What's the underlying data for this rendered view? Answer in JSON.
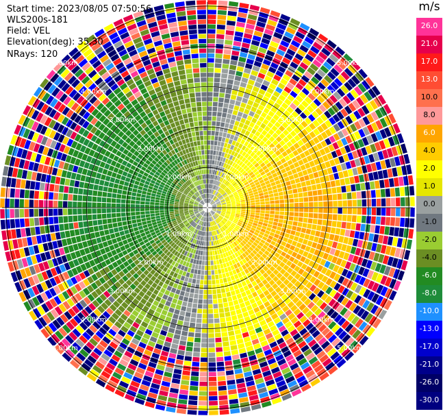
{
  "header": {
    "start_time": "Start time: 2023/08/05 07:50:56",
    "instrument": "WLS200s-181",
    "field": "Field: VEL",
    "elevation": "Elevation(deg): 35.30",
    "nrays": "NRays: 120"
  },
  "colorbar": {
    "title": "m/s",
    "ticks": [
      "26.0",
      "21.0",
      "17.0",
      "13.0",
      "10.0",
      "8.0",
      "6.0",
      "4.0",
      "2.0",
      "1.0",
      "0.0",
      "-1.0",
      "-2.0",
      "-4.0",
      "-6.0",
      "-8.0",
      "-10.0",
      "-13.0",
      "-17.0",
      "-21.0",
      "-26.0",
      "-30.0"
    ],
    "colors": [
      "#ff3399",
      "#e6004c",
      "#ff1a1a",
      "#ff4d33",
      "#ff704d",
      "#ff9999",
      "#ffa500",
      "#ffcc00",
      "#ffff00",
      "#e6e600",
      "#9aa0a0",
      "#707880",
      "#9acd32",
      "#6b8e23",
      "#228b22",
      "#1e8c3a",
      "#1e90ff",
      "#0000ff",
      "#0000cd",
      "#00008b",
      "#000066",
      "#000080"
    ]
  },
  "chart_data": {
    "type": "ppi",
    "field": "VEL",
    "units": "m/s",
    "nrays": 120,
    "range_ring_labels": [
      "1.00km",
      "2.00km",
      "3.00km",
      "4.00km",
      "5.00km"
    ],
    "range_rings_km": [
      1,
      2,
      3,
      4,
      5
    ],
    "max_range_km": 5.1,
    "colormap_min": -30.0,
    "colormap_max": 26.0,
    "pattern": {
      "receding_center_azimuth_deg": 100,
      "receding_max_ms": 6.0,
      "approaching_max_ms": -6.0,
      "noise_beyond_km": 3.7
    }
  }
}
